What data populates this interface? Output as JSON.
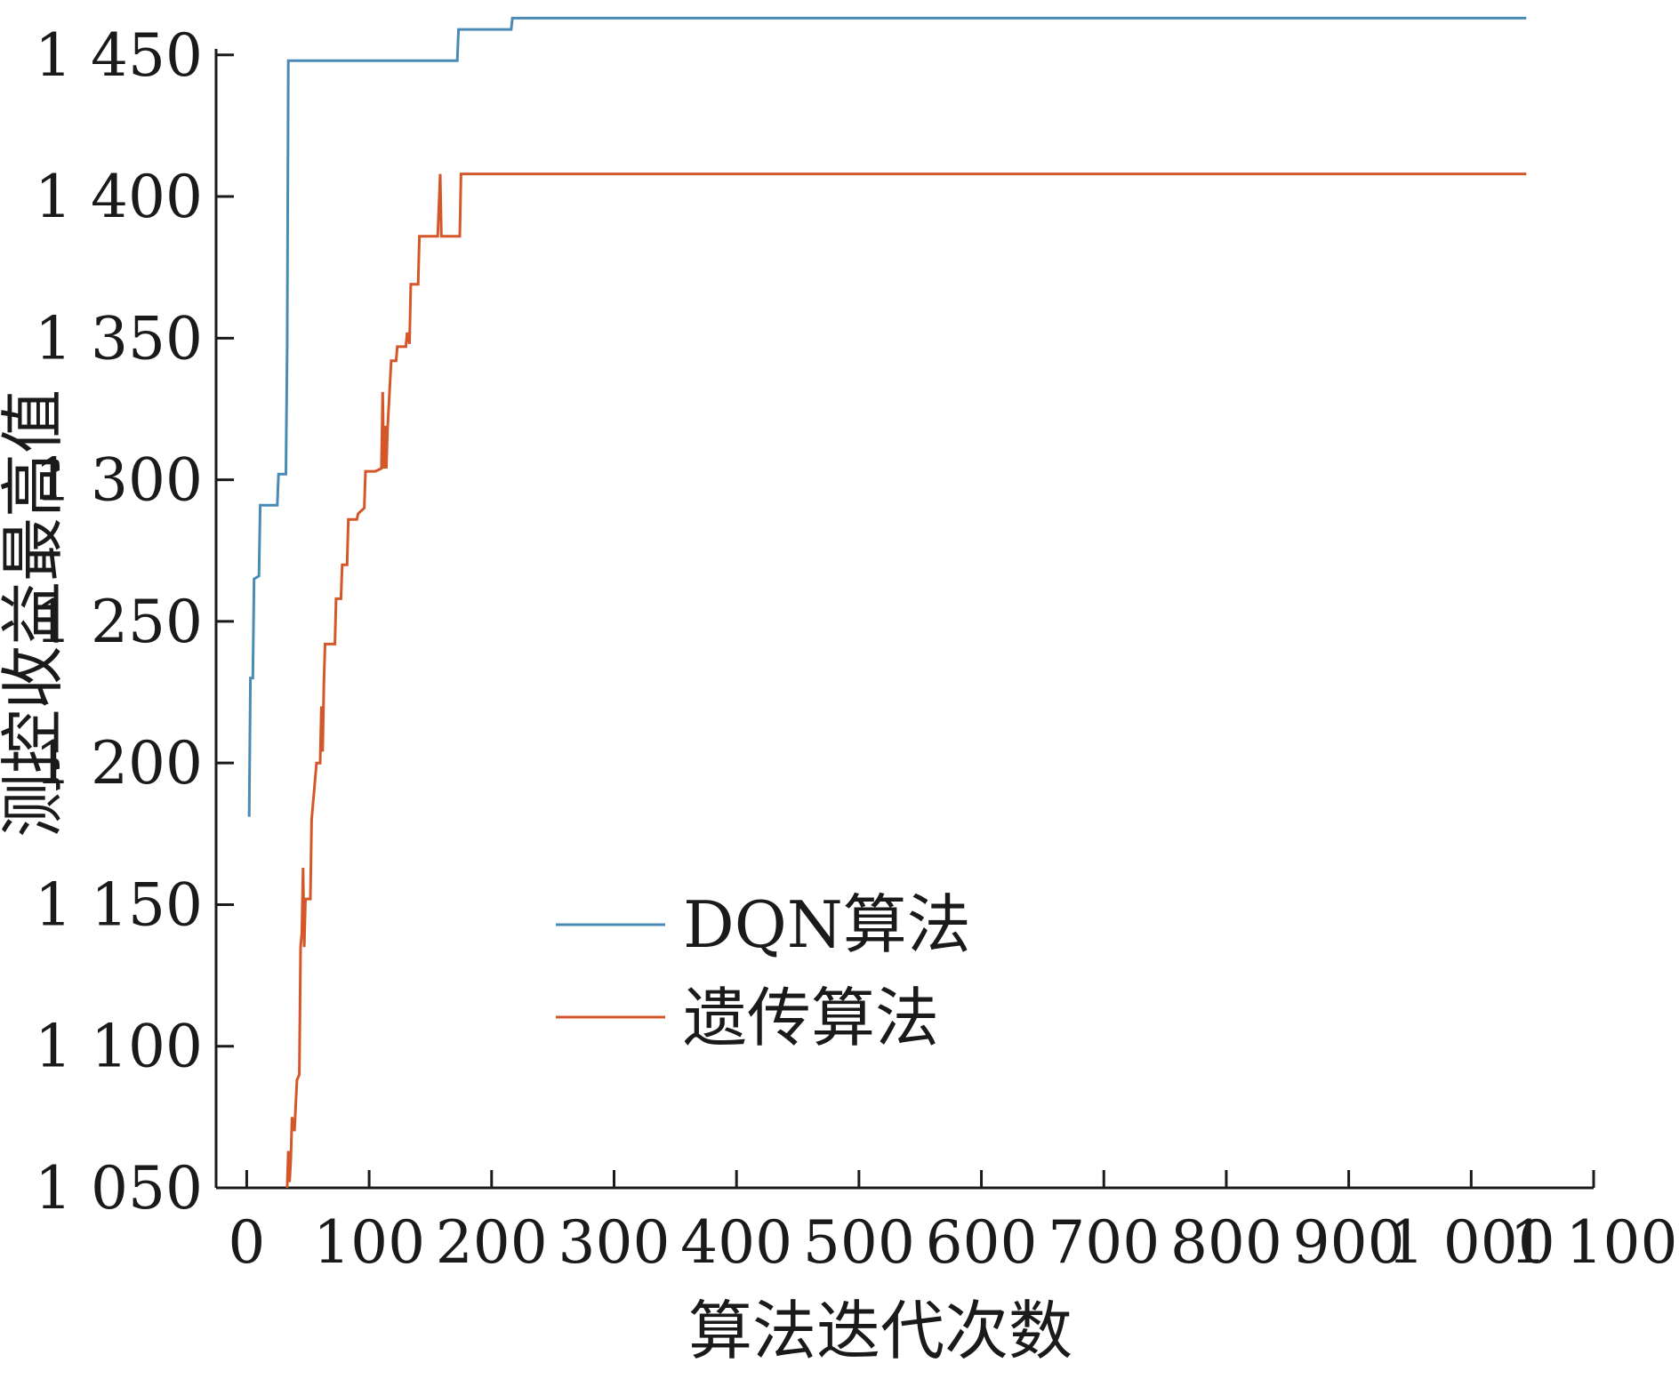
{
  "chart_data": {
    "type": "line",
    "title": "",
    "xlabel": "算法迭代次数",
    "ylabel": "测控收益最高值",
    "xlim": [
      -25,
      1100
    ],
    "ylim": [
      1050,
      1465
    ],
    "x_ticks": [
      0,
      100,
      200,
      300,
      400,
      500,
      600,
      700,
      800,
      900,
      1000,
      1100
    ],
    "x_tick_labels": [
      "0",
      "100",
      "200",
      "300",
      "400",
      "500",
      "600",
      "700",
      "800",
      "900",
      "1 000",
      "1 100"
    ],
    "y_ticks": [
      1050,
      1100,
      1150,
      1200,
      1250,
      1300,
      1350,
      1400,
      1450
    ],
    "y_tick_labels": [
      "1 050",
      "1 100",
      "1 150",
      "1 200",
      "1 250",
      "1 300",
      "1 350",
      "1 400",
      "1 450"
    ],
    "grid": false,
    "legend_position": "center-left",
    "series": [
      {
        "name": "DQN算法",
        "color": "#4a8ab4",
        "points": [
          [
            2,
            1181
          ],
          [
            3,
            1230
          ],
          [
            5,
            1230
          ],
          [
            6,
            1265
          ],
          [
            10,
            1266
          ],
          [
            11,
            1291
          ],
          [
            25,
            1291
          ],
          [
            26,
            1302
          ],
          [
            32,
            1302
          ],
          [
            33,
            1347
          ],
          [
            34,
            1448
          ],
          [
            172,
            1448
          ],
          [
            173,
            1459
          ],
          [
            216,
            1459
          ],
          [
            217,
            1463
          ],
          [
            1045,
            1463
          ]
        ]
      },
      {
        "name": "遗传算法",
        "color": "#d4572a",
        "points": [
          [
            33,
            1050
          ],
          [
            34,
            1063
          ],
          [
            35,
            1052
          ],
          [
            36,
            1060
          ],
          [
            37,
            1075
          ],
          [
            39,
            1070
          ],
          [
            41,
            1088
          ],
          [
            43,
            1090
          ],
          [
            44,
            1135
          ],
          [
            45,
            1140
          ],
          [
            46,
            1163
          ],
          [
            47,
            1135
          ],
          [
            48,
            1152
          ],
          [
            52,
            1152
          ],
          [
            53,
            1180
          ],
          [
            55,
            1190
          ],
          [
            57,
            1200
          ],
          [
            60,
            1200
          ],
          [
            61,
            1220
          ],
          [
            62,
            1204
          ],
          [
            63,
            1228
          ],
          [
            64,
            1242
          ],
          [
            72,
            1242
          ],
          [
            73,
            1258
          ],
          [
            77,
            1258
          ],
          [
            78,
            1270
          ],
          [
            82,
            1270
          ],
          [
            83,
            1286
          ],
          [
            90,
            1286
          ],
          [
            91,
            1288
          ],
          [
            96,
            1290
          ],
          [
            97,
            1303
          ],
          [
            105,
            1303
          ],
          [
            110,
            1304
          ],
          [
            111,
            1331
          ],
          [
            112,
            1304
          ],
          [
            113,
            1319
          ],
          [
            114,
            1304
          ],
          [
            115,
            1318
          ],
          [
            118,
            1342
          ],
          [
            122,
            1342
          ],
          [
            123,
            1347
          ],
          [
            130,
            1347
          ],
          [
            131,
            1352
          ],
          [
            133,
            1348
          ],
          [
            134,
            1369
          ],
          [
            140,
            1369
          ],
          [
            141,
            1386
          ],
          [
            156,
            1386
          ],
          [
            158,
            1408
          ],
          [
            159,
            1386
          ],
          [
            174,
            1386
          ],
          [
            175,
            1408
          ],
          [
            1045,
            1408
          ]
        ]
      }
    ]
  }
}
